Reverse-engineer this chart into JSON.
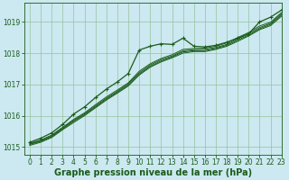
{
  "title": "Graphe pression niveau de la mer (hPa)",
  "bg_color": "#cce8f0",
  "grid_color": "#88bb88",
  "line_color": "#1a5c1a",
  "xlim": [
    -0.5,
    23
  ],
  "ylim": [
    1014.75,
    1019.6
  ],
  "yticks": [
    1015,
    1016,
    1017,
    1018,
    1019
  ],
  "xticks": [
    0,
    1,
    2,
    3,
    4,
    5,
    6,
    7,
    8,
    9,
    10,
    11,
    12,
    13,
    14,
    15,
    16,
    17,
    18,
    19,
    20,
    21,
    22,
    23
  ],
  "series_lines": [
    [
      1015.05,
      1015.15,
      1015.3,
      1015.55,
      1015.78,
      1016.0,
      1016.25,
      1016.5,
      1016.72,
      1016.95,
      1017.3,
      1017.55,
      1017.72,
      1017.85,
      1018.0,
      1018.05,
      1018.05,
      1018.12,
      1018.22,
      1018.38,
      1018.55,
      1018.75,
      1018.88,
      1019.18
    ],
    [
      1015.08,
      1015.18,
      1015.33,
      1015.58,
      1015.82,
      1016.03,
      1016.28,
      1016.53,
      1016.75,
      1016.98,
      1017.33,
      1017.58,
      1017.75,
      1017.88,
      1018.04,
      1018.08,
      1018.08,
      1018.15,
      1018.25,
      1018.42,
      1018.58,
      1018.78,
      1018.92,
      1019.22
    ],
    [
      1015.1,
      1015.2,
      1015.35,
      1015.6,
      1015.85,
      1016.06,
      1016.31,
      1016.56,
      1016.78,
      1017.02,
      1017.37,
      1017.62,
      1017.79,
      1017.91,
      1018.07,
      1018.11,
      1018.12,
      1018.18,
      1018.28,
      1018.46,
      1018.62,
      1018.82,
      1018.95,
      1019.26
    ],
    [
      1015.12,
      1015.22,
      1015.38,
      1015.63,
      1015.88,
      1016.09,
      1016.35,
      1016.6,
      1016.82,
      1017.05,
      1017.42,
      1017.66,
      1017.83,
      1017.95,
      1018.12,
      1018.15,
      1018.16,
      1018.22,
      1018.33,
      1018.5,
      1018.66,
      1018.87,
      1018.99,
      1019.3
    ]
  ],
  "series_marker": [
    1015.15,
    1015.28,
    1015.45,
    1015.72,
    1016.05,
    1016.28,
    1016.58,
    1016.85,
    1017.08,
    1017.35,
    1018.1,
    1018.22,
    1018.3,
    1018.28,
    1018.48,
    1018.22,
    1018.2,
    1018.25,
    1018.35,
    1018.48,
    1018.62,
    1019.0,
    1019.15,
    1019.38
  ],
  "marker_style": "P",
  "marker_size": 3.5,
  "fontsize_ticks": 5.5,
  "fontsize_label": 7
}
